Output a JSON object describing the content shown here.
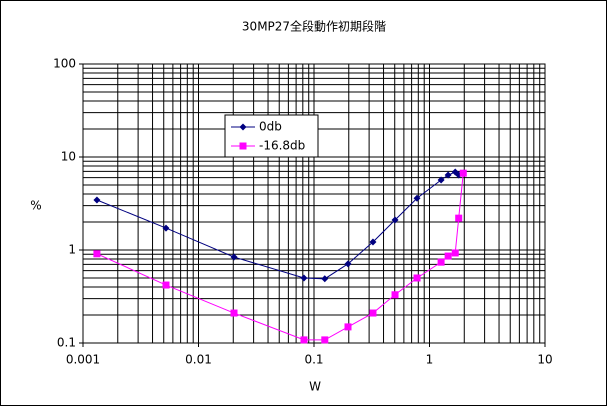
{
  "chart_data": {
    "type": "line",
    "title": "30MP27全段動作初期段階",
    "xlabel": "W",
    "ylabel": "%",
    "xscale": "log",
    "yscale": "log",
    "grid": true,
    "minor_grid": true,
    "legend_position": "upper left",
    "xlim": [
      0.001,
      10
    ],
    "xticks": [
      0.001,
      0.01,
      0.1,
      1,
      10
    ],
    "ylim": [
      0.1,
      100
    ],
    "yticks": [
      0.1,
      1,
      10,
      100
    ],
    "series": [
      {
        "name": "0db",
        "color": "#000080",
        "marker": "diamond",
        "x": [
          0.00132,
          0.00523,
          0.0203,
          0.0819,
          0.124,
          0.197,
          0.324,
          0.503,
          0.78,
          1.26,
          1.45,
          1.67,
          1.79,
          1.96
        ],
        "values": [
          3.45,
          1.72,
          0.84,
          0.5,
          0.49,
          0.71,
          1.22,
          2.1,
          3.6,
          5.66,
          6.4,
          6.9,
          6.4,
          6.7
        ]
      },
      {
        "name": "-16.8db",
        "color": "#ff00ff",
        "marker": "square",
        "x": [
          0.00132,
          0.00523,
          0.0203,
          0.0819,
          0.124,
          0.197,
          0.324,
          0.503,
          0.78,
          1.26,
          1.45,
          1.67,
          1.79,
          1.96
        ],
        "values": [
          0.91,
          0.42,
          0.21,
          0.108,
          0.108,
          0.149,
          0.21,
          0.33,
          0.5,
          0.74,
          0.86,
          0.93,
          2.2,
          6.7
        ]
      }
    ]
  }
}
